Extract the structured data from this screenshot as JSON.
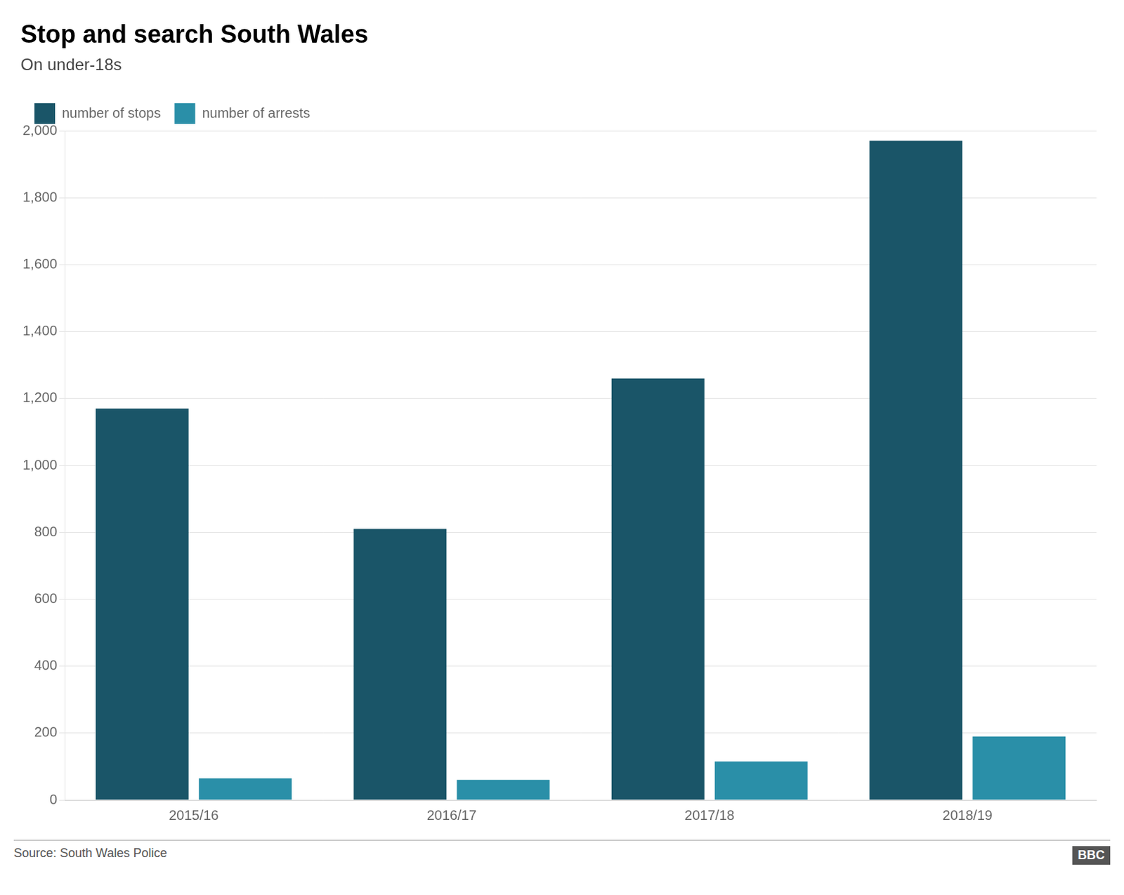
{
  "chart_data": {
    "type": "bar",
    "title": "Stop and search South Wales",
    "subtitle": "On under-18s",
    "categories": [
      "2015/16",
      "2016/17",
      "2017/18",
      "2018/19"
    ],
    "series": [
      {
        "name": "number of stops",
        "color": "#1a5568",
        "values": [
          1170,
          810,
          1260,
          1970
        ]
      },
      {
        "name": "number of arrests",
        "color": "#2a8fa8",
        "values": [
          65,
          60,
          115,
          190
        ]
      }
    ],
    "ylim": [
      0,
      2000
    ],
    "yticks": [
      0,
      200,
      400,
      600,
      800,
      {
        "value": 1000,
        "label": "1,000"
      },
      {
        "value": 1200,
        "label": "1,200"
      },
      {
        "value": 1400,
        "label": "1,400"
      },
      {
        "value": 1600,
        "label": "1,600"
      },
      {
        "value": 1800,
        "label": "1,800"
      },
      {
        "value": 2000,
        "label": "2,000"
      }
    ],
    "grid": "y",
    "legend": "top-left",
    "annotations": [
      "Source: South Wales Police",
      "BBC"
    ]
  }
}
